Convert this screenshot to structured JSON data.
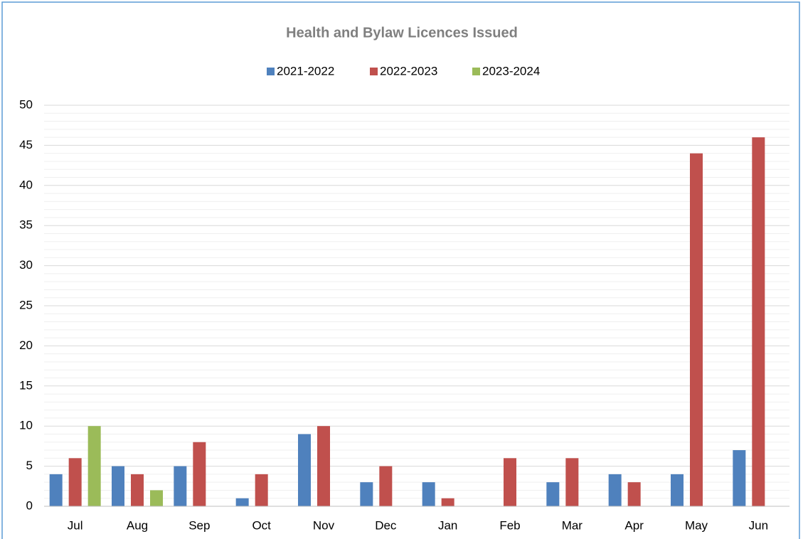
{
  "chart_data": {
    "type": "bar",
    "title": "Health and Bylaw Licences Issued",
    "categories": [
      "Jul",
      "Aug",
      "Sep",
      "Oct",
      "Nov",
      "Dec",
      "Jan",
      "Feb",
      "Mar",
      "Apr",
      "May",
      "Jun"
    ],
    "series": [
      {
        "name": "2021-2022",
        "color": "#4f81bd",
        "values": [
          4,
          5,
          5,
          1,
          9,
          3,
          3,
          null,
          3,
          4,
          4,
          7
        ]
      },
      {
        "name": "2022-2023",
        "color": "#c0504d",
        "values": [
          6,
          4,
          8,
          4,
          10,
          5,
          1,
          6,
          6,
          3,
          44,
          46
        ]
      },
      {
        "name": "2023-2024",
        "color": "#9bbb59",
        "values": [
          10,
          2,
          null,
          null,
          null,
          null,
          null,
          null,
          null,
          null,
          null,
          null
        ]
      }
    ],
    "ylim": [
      0,
      50
    ],
    "yticks": [
      0,
      5,
      10,
      15,
      20,
      25,
      30,
      35,
      40,
      45,
      50
    ],
    "minor_yticks": [
      1,
      2,
      3,
      4,
      6,
      7,
      8,
      9,
      11,
      12,
      13,
      14,
      16,
      17,
      18,
      19,
      21,
      22,
      23,
      24,
      26,
      27,
      28,
      29,
      31,
      32,
      33,
      34,
      36,
      37,
      38,
      39,
      41,
      42,
      43,
      44,
      46,
      47,
      48,
      49
    ],
    "grid": true,
    "legend": "top"
  }
}
